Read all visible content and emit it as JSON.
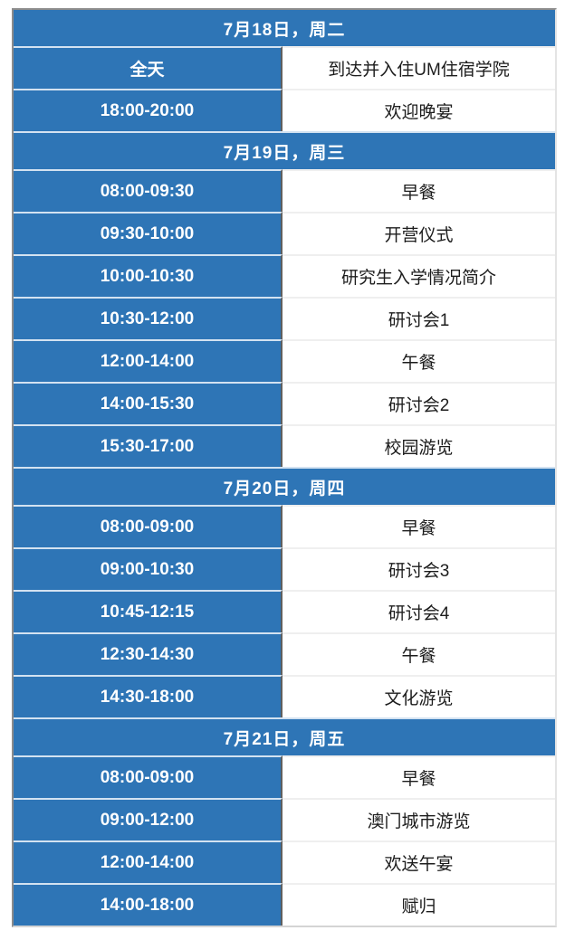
{
  "colors": {
    "accent_blue": "#2e75b6",
    "column_divider": "#5f5f5f",
    "blue_row_separator": "#d3e2f1",
    "white_row_separator": "#efefef",
    "activity_text": "#1c1c1c",
    "header_text": "#ffffff"
  },
  "table": {
    "sections": [
      {
        "header": "7月18日，周二",
        "rows": [
          [
            "全天",
            "到达并入住UM住宿学院"
          ],
          [
            "18:00-20:00",
            "欢迎晚宴"
          ]
        ]
      },
      {
        "header": "7月19日，周三",
        "rows": [
          [
            "08:00-09:30",
            "早餐"
          ],
          [
            "09:30-10:00",
            "开营仪式"
          ],
          [
            "10:00-10:30",
            "研究生入学情况简介"
          ],
          [
            "10:30-12:00",
            "研讨会1"
          ],
          [
            "12:00-14:00",
            "午餐"
          ],
          [
            "14:00-15:30",
            "研讨会2"
          ],
          [
            "15:30-17:00",
            "校园游览"
          ]
        ]
      },
      {
        "header": "7月20日，周四",
        "rows": [
          [
            "08:00-09:00",
            "早餐"
          ],
          [
            "09:00-10:30",
            "研讨会3"
          ],
          [
            "10:45-12:15",
            "研讨会4"
          ],
          [
            "12:30-14:30",
            "午餐"
          ],
          [
            "14:30-18:00",
            "文化游览"
          ]
        ]
      },
      {
        "header": "7月21日，周五",
        "rows": [
          [
            "08:00-09:00",
            "早餐"
          ],
          [
            "09:00-12:00",
            "澳门城市游览"
          ],
          [
            "12:00-14:00",
            "欢送午宴"
          ],
          [
            "14:00-18:00",
            "赋归"
          ]
        ]
      }
    ]
  }
}
